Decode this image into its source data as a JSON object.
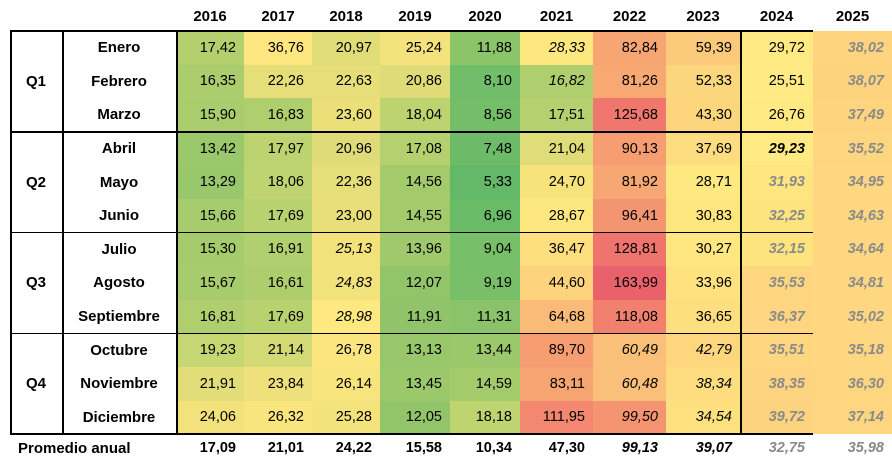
{
  "columns": [
    "2016",
    "2017",
    "2018",
    "2019",
    "2020",
    "2021",
    "2022",
    "2023",
    "2024",
    "2025"
  ],
  "quarters": [
    {
      "label": "Q1",
      "months": [
        "Enero",
        "Febrero",
        "Marzo"
      ]
    },
    {
      "label": "Q2",
      "months": [
        "Abril",
        "Mayo",
        "Junio"
      ]
    },
    {
      "label": "Q3",
      "months": [
        "Julio",
        "Agosto",
        "Septiembre"
      ]
    },
    {
      "label": "Q4",
      "months": [
        "Octubre",
        "Noviembre",
        "Diciembre"
      ]
    }
  ],
  "rows": [
    {
      "month": "Enero",
      "values": [
        "17,42",
        "36,76",
        "20,97",
        "25,24",
        "11,88",
        "28,33",
        "82,84",
        "59,39",
        "29,72",
        "38,02"
      ],
      "styles": [
        "",
        "",
        "",
        "",
        "",
        "it",
        "",
        "",
        "",
        "proj"
      ],
      "colors": [
        "#b3cf6e",
        "#fde57f",
        "#e0dc78",
        "#f4e27c",
        "#8cc46a",
        "#fde880",
        "#f7a573",
        "#fbc97a",
        "#ffe983",
        "#fed47e"
      ]
    },
    {
      "month": "Febrero",
      "values": [
        "16,35",
        "22,26",
        "22,63",
        "20,86",
        "8,10",
        "16,82",
        "81,26",
        "52,33",
        "25,51",
        "38,07"
      ],
      "styles": [
        "",
        "",
        "",
        "",
        "",
        "it",
        "",
        "",
        "",
        "proj"
      ],
      "colors": [
        "#accd6d",
        "#e5de79",
        "#e7de7a",
        "#dfdb78",
        "#72bd69",
        "#afce6e",
        "#f7a873",
        "#fcd67d",
        "#ffea84",
        "#fed37e"
      ]
    },
    {
      "month": "Marzo",
      "values": [
        "15,90",
        "16,83",
        "23,60",
        "18,04",
        "8,56",
        "17,51",
        "125,68",
        "43,30",
        "26,76",
        "37,49"
      ],
      "styles": [
        "",
        "",
        "",
        "",
        "",
        "",
        "",
        "",
        "",
        "proj"
      ],
      "colors": [
        "#a9cc6d",
        "#afcf6e",
        "#ebdf7a",
        "#bcd370",
        "#75be69",
        "#b4d06f",
        "#f0776d",
        "#fdd57d",
        "#ffe983",
        "#fed47e"
      ]
    },
    {
      "month": "Abril",
      "values": [
        "13,42",
        "17,97",
        "20,96",
        "17,08",
        "7,48",
        "21,04",
        "90,13",
        "37,69",
        "29,23",
        "35,52"
      ],
      "styles": [
        "",
        "",
        "",
        "",
        "",
        "",
        "",
        "",
        "bi",
        "proj"
      ],
      "colors": [
        "#9ac86b",
        "#bcd370",
        "#dfdb78",
        "#b4d06f",
        "#6dbb68",
        "#e0dc78",
        "#f69d72",
        "#fedd80",
        "#ffe983",
        "#fed680"
      ]
    },
    {
      "month": "Mayo",
      "values": [
        "13,29",
        "18,06",
        "22,36",
        "14,56",
        "5,33",
        "24,70",
        "81,92",
        "28,71",
        "31,93",
        "34,95"
      ],
      "styles": [
        "",
        "",
        "",
        "",
        "",
        "",
        "",
        "",
        "proj",
        "proj"
      ],
      "colors": [
        "#99c76b",
        "#bdd470",
        "#e5de79",
        "#a3cb6c",
        "#63b967",
        "#f6e37c",
        "#f7a773",
        "#fee880",
        "#fee57f",
        "#fed780"
      ]
    },
    {
      "month": "Junio",
      "values": [
        "15,66",
        "17,69",
        "23,00",
        "14,55",
        "6,96",
        "28,67",
        "96,41",
        "30,83",
        "32,25",
        "34,63"
      ],
      "styles": [
        "",
        "",
        "",
        "",
        "",
        "",
        "",
        "",
        "proj",
        "proj"
      ],
      "colors": [
        "#a7cc6d",
        "#b9d270",
        "#e8de7a",
        "#a3cb6c",
        "#6abb68",
        "#fde880",
        "#f49571",
        "#fee67f",
        "#fee47f",
        "#fed780"
      ]
    },
    {
      "month": "Julio",
      "values": [
        "15,30",
        "16,91",
        "25,13",
        "13,96",
        "9,04",
        "36,47",
        "128,81",
        "30,27",
        "32,15",
        "34,64"
      ],
      "styles": [
        "",
        "",
        "it",
        "",
        "",
        "",
        "",
        "",
        "proj",
        "proj"
      ],
      "colors": [
        "#a5cb6c",
        "#b0cf6e",
        "#f3e27c",
        "#9fc96c",
        "#78bf69",
        "#fedf80",
        "#ef746d",
        "#fee780",
        "#fee47f",
        "#fed780"
      ]
    },
    {
      "month": "Agosto",
      "values": [
        "15,67",
        "16,61",
        "24,83",
        "12,07",
        "9,19",
        "44,60",
        "163,99",
        "33,96",
        "35,53",
        "34,81"
      ],
      "styles": [
        "",
        "",
        "it",
        "",
        "",
        "",
        "",
        "",
        "proj",
        "proj"
      ],
      "colors": [
        "#a7cc6d",
        "#aece6e",
        "#f2e27c",
        "#92c56a",
        "#79bf69",
        "#fdd47d",
        "#e8616b",
        "#fee27f",
        "#fed680",
        "#fed780"
      ]
    },
    {
      "month": "Septiembre",
      "values": [
        "16,81",
        "17,69",
        "28,98",
        "11,91",
        "11,31",
        "64,68",
        "118,08",
        "36,65",
        "36,37",
        "35,02"
      ],
      "styles": [
        "",
        "",
        "it",
        "",
        "",
        "",
        "",
        "",
        "proj",
        "proj"
      ],
      "colors": [
        "#afcf6e",
        "#b9d270",
        "#fee880",
        "#91c46a",
        "#8bc36a",
        "#f9bb77",
        "#f2806e",
        "#fedf80",
        "#fed580",
        "#fed780"
      ]
    },
    {
      "month": "Octubre",
      "values": [
        "19,23",
        "21,14",
        "26,78",
        "13,13",
        "13,44",
        "89,70",
        "60,49",
        "42,79",
        "35,51",
        "35,18"
      ],
      "styles": [
        "",
        "",
        "",
        "",
        "",
        "",
        "it",
        "it",
        "proj",
        "proj"
      ],
      "colors": [
        "#c6d672",
        "#d3d975",
        "#fae57e",
        "#98c76b",
        "#9ac86b",
        "#f69e72",
        "#fac07a",
        "#fdd67d",
        "#fed680",
        "#fed780"
      ]
    },
    {
      "month": "Noviembre",
      "values": [
        "21,91",
        "23,84",
        "26,14",
        "13,45",
        "14,59",
        "83,11",
        "60,48",
        "38,34",
        "38,35",
        "36,30"
      ],
      "styles": [
        "",
        "",
        "",
        "",
        "",
        "",
        "it",
        "it",
        "proj",
        "proj"
      ],
      "colors": [
        "#e2dc79",
        "#eee07b",
        "#f8e47d",
        "#9ac86b",
        "#a3cb6c",
        "#f7a473",
        "#fac07a",
        "#fedc80",
        "#fed480",
        "#fed680"
      ]
    },
    {
      "month": "Diciembre",
      "values": [
        "24,06",
        "26,32",
        "25,28",
        "12,05",
        "18,18",
        "111,95",
        "99,50",
        "34,54",
        "39,72",
        "37,14"
      ],
      "styles": [
        "",
        "",
        "",
        "",
        "",
        "",
        "it",
        "it",
        "proj",
        "proj"
      ],
      "colors": [
        "#f3e27c",
        "#f9e57e",
        "#f4e27c",
        "#92c56a",
        "#bed470",
        "#f3876f",
        "#f49471",
        "#fee17f",
        "#fed380",
        "#fed580"
      ]
    }
  ],
  "average": {
    "label": "Promedio anual",
    "values": [
      "17,09",
      "21,01",
      "24,22",
      "15,58",
      "10,34",
      "47,30",
      "99,13",
      "39,07",
      "32,75",
      "35,98"
    ],
    "styles": [
      "",
      "",
      "",
      "",
      "",
      "",
      "bi",
      "bi",
      "proj",
      "proj"
    ]
  }
}
